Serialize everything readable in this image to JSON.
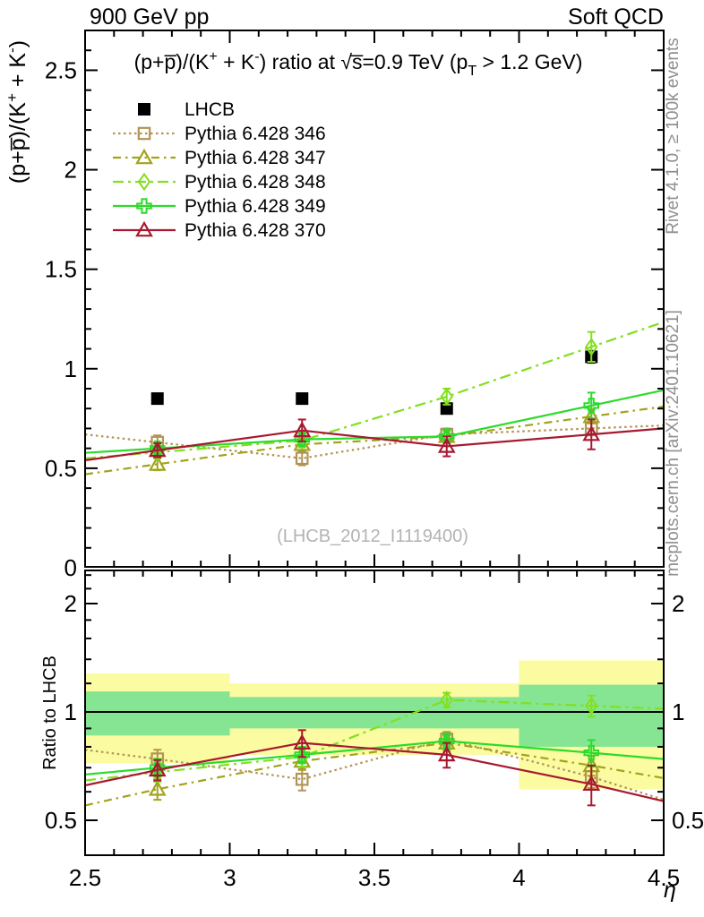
{
  "header": {
    "left": "900 GeV pp",
    "right": "Soft QCD"
  },
  "side_texts": {
    "rivet": "Rivet 4.1.0, ≥ 100k events",
    "mcplots": "mcplots.cern.ch [arXiv:2401.10621]"
  },
  "watermark": "(LHCB_2012_I1119400)",
  "chart_data": {
    "type": "line",
    "title_segments": [
      {
        "t": "(p+"
      },
      {
        "t": "p̅"
      },
      {
        "t": ")/(K"
      },
      {
        "t": "+",
        "pos": "sup"
      },
      {
        "t": " + K"
      },
      {
        "t": "-",
        "pos": "sup"
      },
      {
        "t": ") ratio at "
      },
      {
        "t": "√s̅"
      },
      {
        "t": "=0.9 TeV (p"
      },
      {
        "t": "T",
        "pos": "sub"
      },
      {
        "t": " > 1.2 GeV)"
      }
    ],
    "ylabel_segments": [
      {
        "t": "(p+"
      },
      {
        "t": "p̅"
      },
      {
        "t": ")/(K"
      },
      {
        "t": "+",
        "pos": "sup"
      },
      {
        "t": " + K"
      },
      {
        "t": "-",
        "pos": "sup"
      },
      {
        "t": ")"
      }
    ],
    "ratio_ylabel": "Ratio to LHCB",
    "xlabel": "η",
    "xlim": [
      2.5,
      4.5
    ],
    "x_major_ticks": [
      2.5,
      3,
      3.5,
      4,
      4.5
    ],
    "x_tick_labels": [
      "2.5",
      "3",
      "3.5",
      "4",
      "4.5"
    ],
    "x_minor_step": 0.1,
    "main_panel": {
      "ylim": [
        0,
        2.7
      ],
      "major_ticks": [
        0,
        0.5,
        1,
        1.5,
        2,
        2.5
      ],
      "tick_labels": [
        "0",
        "0.5",
        "1",
        "1.5",
        "2",
        "2.5"
      ],
      "minor_step": 0.1
    },
    "ratio_panel": {
      "scale": "log",
      "ylim": [
        0.4,
        2.47
      ],
      "major_ticks": [
        0.5,
        1,
        2
      ],
      "tick_labels": [
        "0.5",
        "1",
        "2"
      ],
      "minor_ticks": [
        0.6,
        0.7,
        0.8,
        0.9,
        1.2,
        1.4,
        1.6,
        1.8,
        2.2,
        2.4
      ],
      "reference_line": 1
    },
    "x": [
      2.75,
      3.25,
      3.75,
      4.25
    ],
    "series": [
      {
        "name": "LHCB",
        "color": "#000000",
        "marker": "filled-square",
        "line": "none",
        "in_ratio": false,
        "values": [
          0.85,
          0.85,
          0.8,
          1.06
        ],
        "errors": [
          0.02,
          0.02,
          0.02,
          0.03
        ]
      },
      {
        "name": "Pythia 6.428 346",
        "color": "#b39355",
        "marker": "open-square",
        "line": "dotted",
        "in_ratio": true,
        "values": [
          0.63,
          0.55,
          0.67,
          0.7
        ],
        "errors": [
          0.035,
          0.035,
          0.03,
          0.035
        ],
        "ratio": [
          0.74,
          0.65,
          0.84,
          0.66
        ],
        "ratio_errors": [
          0.045,
          0.045,
          0.04,
          0.045
        ]
      },
      {
        "name": "Pythia 6.428 347",
        "color": "#a2a31c",
        "marker": "open-triangle",
        "line": "dashdot",
        "in_ratio": true,
        "values": [
          0.52,
          0.62,
          0.66,
          0.76
        ],
        "errors": [
          0.03,
          0.03,
          0.03,
          0.035
        ],
        "ratio": [
          0.61,
          0.73,
          0.82,
          0.71
        ],
        "ratio_errors": [
          0.04,
          0.04,
          0.04,
          0.045
        ]
      },
      {
        "name": "Pythia 6.428 348",
        "color": "#82e01e",
        "marker": "open-diamond",
        "line": "longdashdot",
        "in_ratio": true,
        "values": [
          0.58,
          0.64,
          0.86,
          1.11
        ],
        "errors": [
          0.03,
          0.035,
          0.04,
          0.075
        ],
        "ratio": [
          0.68,
          0.75,
          1.08,
          1.04
        ],
        "ratio_errors": [
          0.04,
          0.045,
          0.05,
          0.07
        ]
      },
      {
        "name": "Pythia 6.428 349",
        "color": "#2bdb2b",
        "marker": "open-cross",
        "line": "solid",
        "in_ratio": true,
        "values": [
          0.6,
          0.645,
          0.66,
          0.815
        ],
        "errors": [
          0.03,
          0.03,
          0.03,
          0.065
        ],
        "ratio": [
          0.7,
          0.76,
          0.83,
          0.77
        ],
        "ratio_errors": [
          0.04,
          0.04,
          0.04,
          0.065
        ]
      },
      {
        "name": "Pythia 6.428 370",
        "color": "#a81931",
        "marker": "open-triangle",
        "line": "solid",
        "in_ratio": true,
        "values": [
          0.59,
          0.69,
          0.61,
          0.67
        ],
        "errors": [
          0.035,
          0.055,
          0.05,
          0.075
        ],
        "ratio": [
          0.69,
          0.82,
          0.76,
          0.63
        ],
        "ratio_errors": [
          0.045,
          0.07,
          0.06,
          0.08
        ]
      }
    ],
    "bands": [
      {
        "x0": 2.5,
        "x1": 3.0,
        "yellow": [
          0.72,
          1.28
        ],
        "green": [
          0.86,
          1.14
        ]
      },
      {
        "x0": 3.0,
        "x1": 3.5,
        "yellow": [
          0.76,
          1.2
        ],
        "green": [
          0.9,
          1.1
        ]
      },
      {
        "x0": 3.5,
        "x1": 4.0,
        "yellow": [
          0.76,
          1.2
        ],
        "green": [
          0.9,
          1.1
        ]
      },
      {
        "x0": 4.0,
        "x1": 4.5,
        "yellow": [
          0.61,
          1.39
        ],
        "green": [
          0.8,
          1.19
        ]
      }
    ],
    "band_colors": {
      "yellow": "#fbfba1",
      "green": "#85e593"
    },
    "legend_position": "top-left",
    "grid": false
  }
}
